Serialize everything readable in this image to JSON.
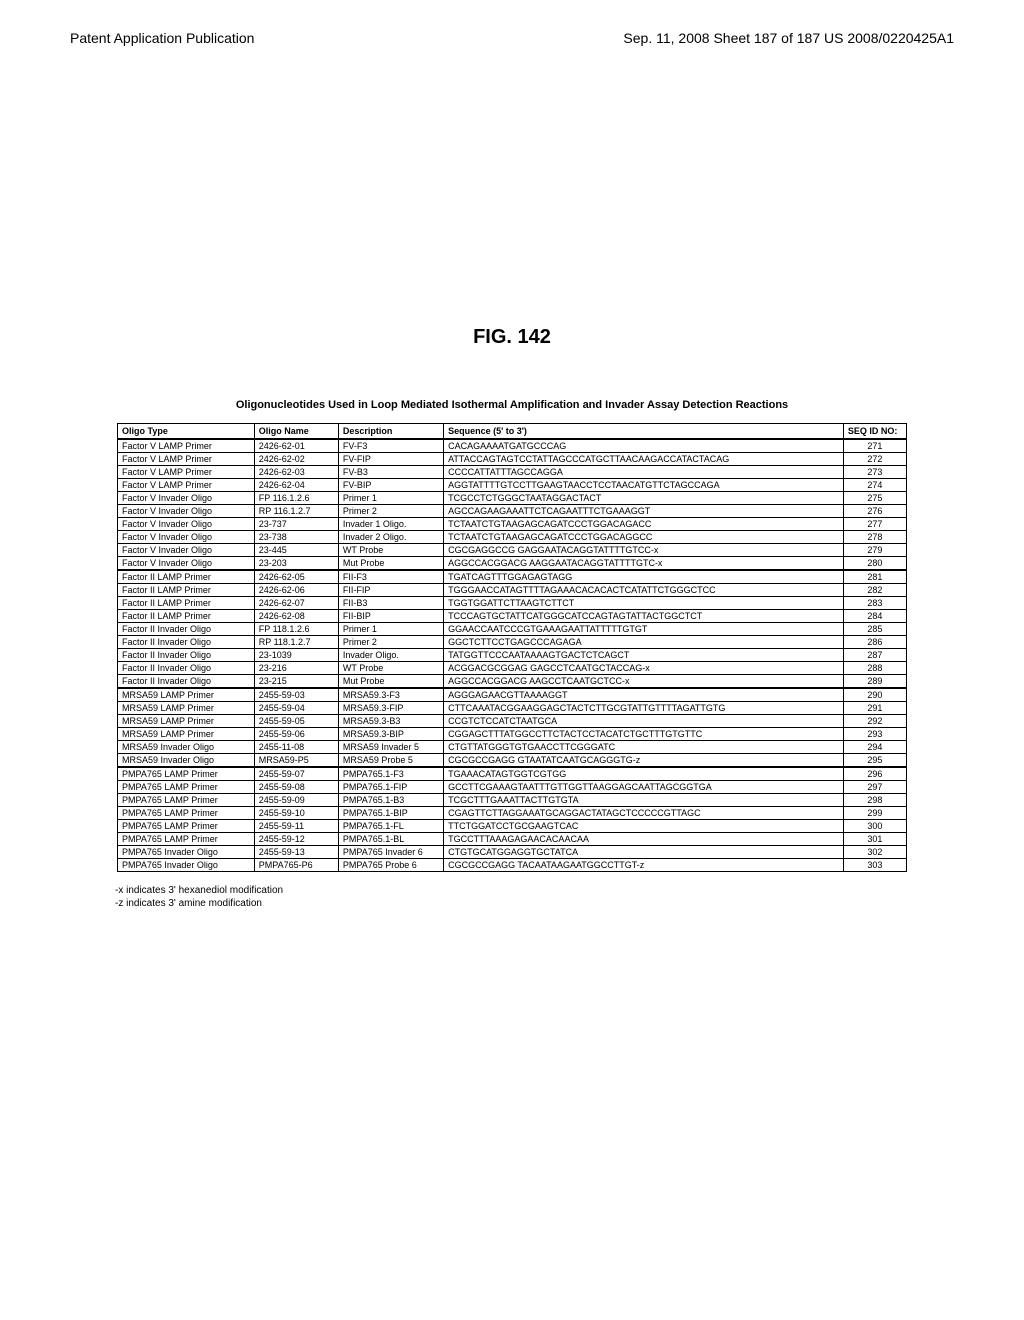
{
  "header": {
    "left": "Patent Application Publication",
    "right": "Sep. 11, 2008  Sheet 187 of 187    US 2008/0220425A1"
  },
  "figure_label": "FIG. 142",
  "table_caption": "Oligonucleotides Used in Loop Mediated Isothermal Amplification and Invader Assay Detection Reactions",
  "columns": [
    "Oligo Type",
    "Oligo Name",
    "Description",
    "Sequence (5' to 3')",
    "SEQ ID NO:"
  ],
  "rows": [
    {
      "type": "Factor V LAMP Primer",
      "name": "2426-62-01",
      "desc": "FV-F3",
      "seq": "CACAGAAAATGATGCCCAG",
      "seqid": "271",
      "section": true
    },
    {
      "type": "Factor V LAMP Primer",
      "name": "2426-62-02",
      "desc": "FV-FIP",
      "seq": "ATTACCAGTAGTCCTATTAGCCCATGCTTAACAAGACCATACTACAG",
      "seqid": "272"
    },
    {
      "type": "Factor V LAMP Primer",
      "name": "2426-62-03",
      "desc": "FV-B3",
      "seq": "CCCCATTATTTAGCCAGGA",
      "seqid": "273"
    },
    {
      "type": "Factor V LAMP Primer",
      "name": "2426-62-04",
      "desc": "FV-BIP",
      "seq": "AGGTATTTTGTCCTTGAAGTAACCTCCTAACATGTTCTAGCCAGA",
      "seqid": "274"
    },
    {
      "type": "Factor V Invader Oligo",
      "name": "FP 116.1.2.6",
      "desc": "Primer 1",
      "seq": "TCGCCTCTGGGCTAATAGGACTACT",
      "seqid": "275"
    },
    {
      "type": "Factor V Invader Oligo",
      "name": "RP 116.1.2.7",
      "desc": "Primer 2",
      "seq": "AGCCAGAAGAAATTCTCAGAATTTCTGAAAGGT",
      "seqid": "276"
    },
    {
      "type": "Factor V Invader Oligo",
      "name": "23-737",
      "desc": "Invader 1 Oligo.",
      "seq": "TCTAATCTGTAAGAGCAGATCCCTGGACAGACC",
      "seqid": "277"
    },
    {
      "type": "Factor V Invader Oligo",
      "name": "23-738",
      "desc": "Invader 2 Oligo.",
      "seq": "TCTAATCTGTAAGAGCAGATCCCTGGACAGGCC",
      "seqid": "278"
    },
    {
      "type": "Factor V Invader Oligo",
      "name": "23-445",
      "desc": "WT Probe",
      "seq": "CGCGAGGCCG GAGGAATACAGGTATTTTGTCC-x",
      "seqid": "279"
    },
    {
      "type": "Factor V Invader Oligo",
      "name": "23-203",
      "desc": "Mut Probe",
      "seq": "AGGCCACGGACG AAGGAATACAGGTATTTTGTC-x",
      "seqid": "280"
    },
    {
      "type": "Factor II LAMP Primer",
      "name": "2426-62-05",
      "desc": "FII-F3",
      "seq": "TGATCAGTTTGGAGAGTAGG",
      "seqid": "281",
      "section": true
    },
    {
      "type": "Factor II LAMP Primer",
      "name": "2426-62-06",
      "desc": "FII-FIP",
      "seq": "TGGGAACCATAGTTTTAGAAACACACACTCATATTCTGGGCTCC",
      "seqid": "282"
    },
    {
      "type": "Factor II LAMP Primer",
      "name": "2426-62-07",
      "desc": "FII-B3",
      "seq": "TGGTGGATTCTTAAGTCTTCT",
      "seqid": "283"
    },
    {
      "type": "Factor II LAMP Primer",
      "name": "2426-62-08",
      "desc": "FII-BIP",
      "seq": "TCCCAGTGCTATTCATGGGCATCCAGTAGTATTACTGGCTCT",
      "seqid": "284"
    },
    {
      "type": "Factor II Invader Oligo",
      "name": "FP 118.1.2.6",
      "desc": "Primer 1",
      "seq": "GGAACCAATCCCGTGAAAGAATTATTTTTGTGT",
      "seqid": "285"
    },
    {
      "type": "Factor II Invader Oligo",
      "name": "RP 118.1.2.7",
      "desc": "Primer 2",
      "seq": "GGCTCTTCCTGAGCCCAGAGA",
      "seqid": "286"
    },
    {
      "type": "Factor II Invader Oligo",
      "name": "23-1039",
      "desc": "Invader Oligo.",
      "seq": "TATGGTTCCCAATAAAAGTGACTCTCAGCT",
      "seqid": "287"
    },
    {
      "type": "Factor II Invader Oligo",
      "name": "23-216",
      "desc": "WT Probe",
      "seq": "ACGGACGCGGAG GAGCCTCAATGCTACCAG-x",
      "seqid": "288"
    },
    {
      "type": "Factor II Invader Oligo",
      "name": "23-215",
      "desc": "Mut Probe",
      "seq": "AGGCCACGGACG AAGCCTCAATGCTCC-x",
      "seqid": "289"
    },
    {
      "type": "MRSA59 LAMP Primer",
      "name": "2455-59-03",
      "desc": "MRSA59.3-F3",
      "seq": "AGGGAGAACGTTAAAAGGT",
      "seqid": "290",
      "section": true
    },
    {
      "type": "MRSA59 LAMP Primer",
      "name": "2455-59-04",
      "desc": "MRSA59.3-FIP",
      "seq": "CTTCAAATACGGAAGGAGCTACTCTTGCGTATTGTTTTAGATTGTG",
      "seqid": "291"
    },
    {
      "type": "MRSA59 LAMP Primer",
      "name": "2455-59-05",
      "desc": "MRSA59.3-B3",
      "seq": "CCGTCTCCATCTAATGCA",
      "seqid": "292"
    },
    {
      "type": "MRSA59 LAMP Primer",
      "name": "2455-59-06",
      "desc": "MRSA59.3-BIP",
      "seq": "CGGAGCTTTATGGCCTTCTACTCCTACATCTGCTTTGTGTTC",
      "seqid": "293"
    },
    {
      "type": "MRSA59 Invader Oligo",
      "name": "2455-11-08",
      "desc": "MRSA59 Invader 5",
      "seq": "CTGTTATGGGTGTGAACCTTCGGGATC",
      "seqid": "294"
    },
    {
      "type": "MRSA59 Invader Oligo",
      "name": "MRSA59-P5",
      "desc": "MRSA59 Probe 5",
      "seq": "CGCGCCGAGG GTAATATCAATGCAGGGTG-z",
      "seqid": "295"
    },
    {
      "type": "PMPA765 LAMP Primer",
      "name": "2455-59-07",
      "desc": "PMPA765.1-F3",
      "seq": "TGAAACATAGTGGTCGTGG",
      "seqid": "296",
      "section": true
    },
    {
      "type": "PMPA765 LAMP Primer",
      "name": "2455-59-08",
      "desc": "PMPA765.1-FIP",
      "seq": "GCCTTCGAAAGTAATTTGTTGGTTAAGGAGCAATTAGCGGTGA",
      "seqid": "297"
    },
    {
      "type": "PMPA765 LAMP Primer",
      "name": "2455-59-09",
      "desc": "PMPA765.1-B3",
      "seq": "TCGCTTTGAAATTACTTGTGTA",
      "seqid": "298"
    },
    {
      "type": "PMPA765 LAMP Primer",
      "name": "2455-59-10",
      "desc": "PMPA765.1-BIP",
      "seq": "CGAGTTCTTAGGAAATGCAGGACTATAGCTCCCCCGTTAGC",
      "seqid": "299"
    },
    {
      "type": "PMPA765 LAMP Primer",
      "name": "2455-59-11",
      "desc": "PMPA765.1-FL",
      "seq": "TTCTGGATCCTGCGAAGTCAC",
      "seqid": "300"
    },
    {
      "type": "PMPA765 LAMP Primer",
      "name": "2455-59-12",
      "desc": "PMPA765.1-BL",
      "seq": "TGCCTTTAAAGAGAACACAACAA",
      "seqid": "301"
    },
    {
      "type": "PMPA765 Invader Oligo",
      "name": "2455-59-13",
      "desc": "PMPA765 Invader 6",
      "seq": "CTGTGCATGGAGGTGCTATCA",
      "seqid": "302"
    },
    {
      "type": "PMPA765 Invader Oligo",
      "name": "PMPA765-P6",
      "desc": "PMPA765 Probe 6",
      "seq": "CGCGCCGAGG TACAATAAGAATGGCCTTGT-z",
      "seqid": "303"
    }
  ],
  "footnotes": [
    "-x indicates 3' hexanediol modification",
    "-z indicates 3' amine modification"
  ]
}
